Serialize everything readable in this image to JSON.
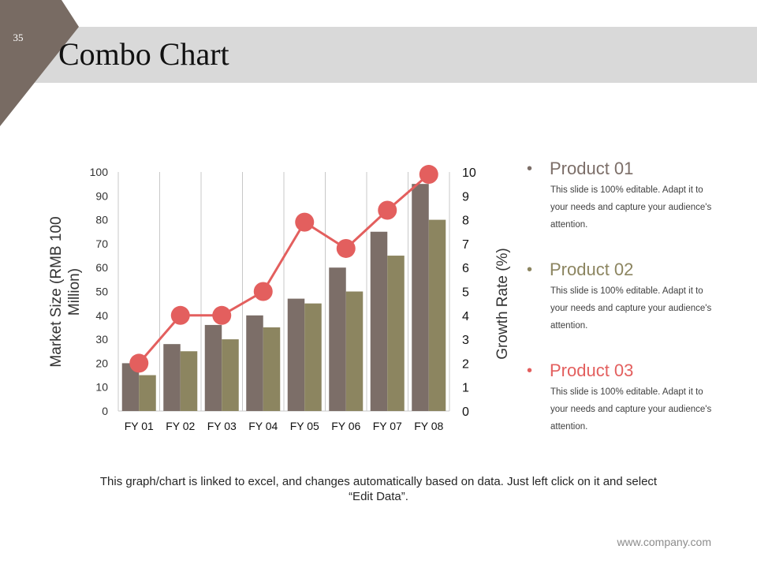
{
  "slide": {
    "number": "35",
    "title": "Combo Chart",
    "caption": "This graph/chart is linked to excel, and changes automatically based on data. Just left click on it and select “Edit Data”.",
    "footer": "www.company.com"
  },
  "colors": {
    "header_band": "#d9d9d9",
    "corner": "#786b63",
    "series1": "#7c6e68",
    "series2": "#8c8560",
    "line": "#e35f5e",
    "product1": "#7c6e68",
    "product2": "#8c8560",
    "product3": "#e35f5e"
  },
  "legend": [
    {
      "title": "Product 01",
      "desc": "This slide is 100% editable. Adapt it to your needs and capture your audience's attention."
    },
    {
      "title": "Product 02",
      "desc": "This slide is 100% editable. Adapt it to your needs and capture your audience's attention."
    },
    {
      "title": "Product 03",
      "desc": "This slide is 100% editable. Adapt it to your needs and capture your audience's attention."
    }
  ],
  "chart_data": {
    "type": "bar",
    "title": "Combo Chart",
    "categories": [
      "FY 01",
      "FY 02",
      "FY 03",
      "FY 04",
      "FY 05",
      "FY 06",
      "FY 07",
      "FY 08"
    ],
    "series": [
      {
        "name": "Product 01",
        "kind": "bar",
        "axis": "left",
        "values": [
          20,
          28,
          36,
          40,
          47,
          60,
          75,
          95
        ]
      },
      {
        "name": "Product 02",
        "kind": "bar",
        "axis": "left",
        "values": [
          15,
          25,
          30,
          35,
          45,
          50,
          65,
          80
        ]
      },
      {
        "name": "Product 03",
        "kind": "line",
        "axis": "right",
        "values": [
          2,
          4,
          4,
          5,
          7.9,
          6.8,
          8.4,
          9.9
        ]
      }
    ],
    "ylabel": "Market Size (RMB 100 Million)",
    "ylabel_lines": [
      "Market Size (RMB 100",
      "Million)"
    ],
    "y2label": "Growth Rate (%)",
    "ylim": [
      0,
      100
    ],
    "yticks": [
      "0",
      "10",
      "20",
      "30",
      "40",
      "50",
      "60",
      "70",
      "80",
      "90",
      "100"
    ],
    "y2lim": [
      0,
      10
    ],
    "y2ticks": [
      "0",
      "1",
      "2",
      "3",
      "4",
      "5",
      "6",
      "7",
      "8",
      "9",
      "10"
    ],
    "grid": "vertical"
  }
}
